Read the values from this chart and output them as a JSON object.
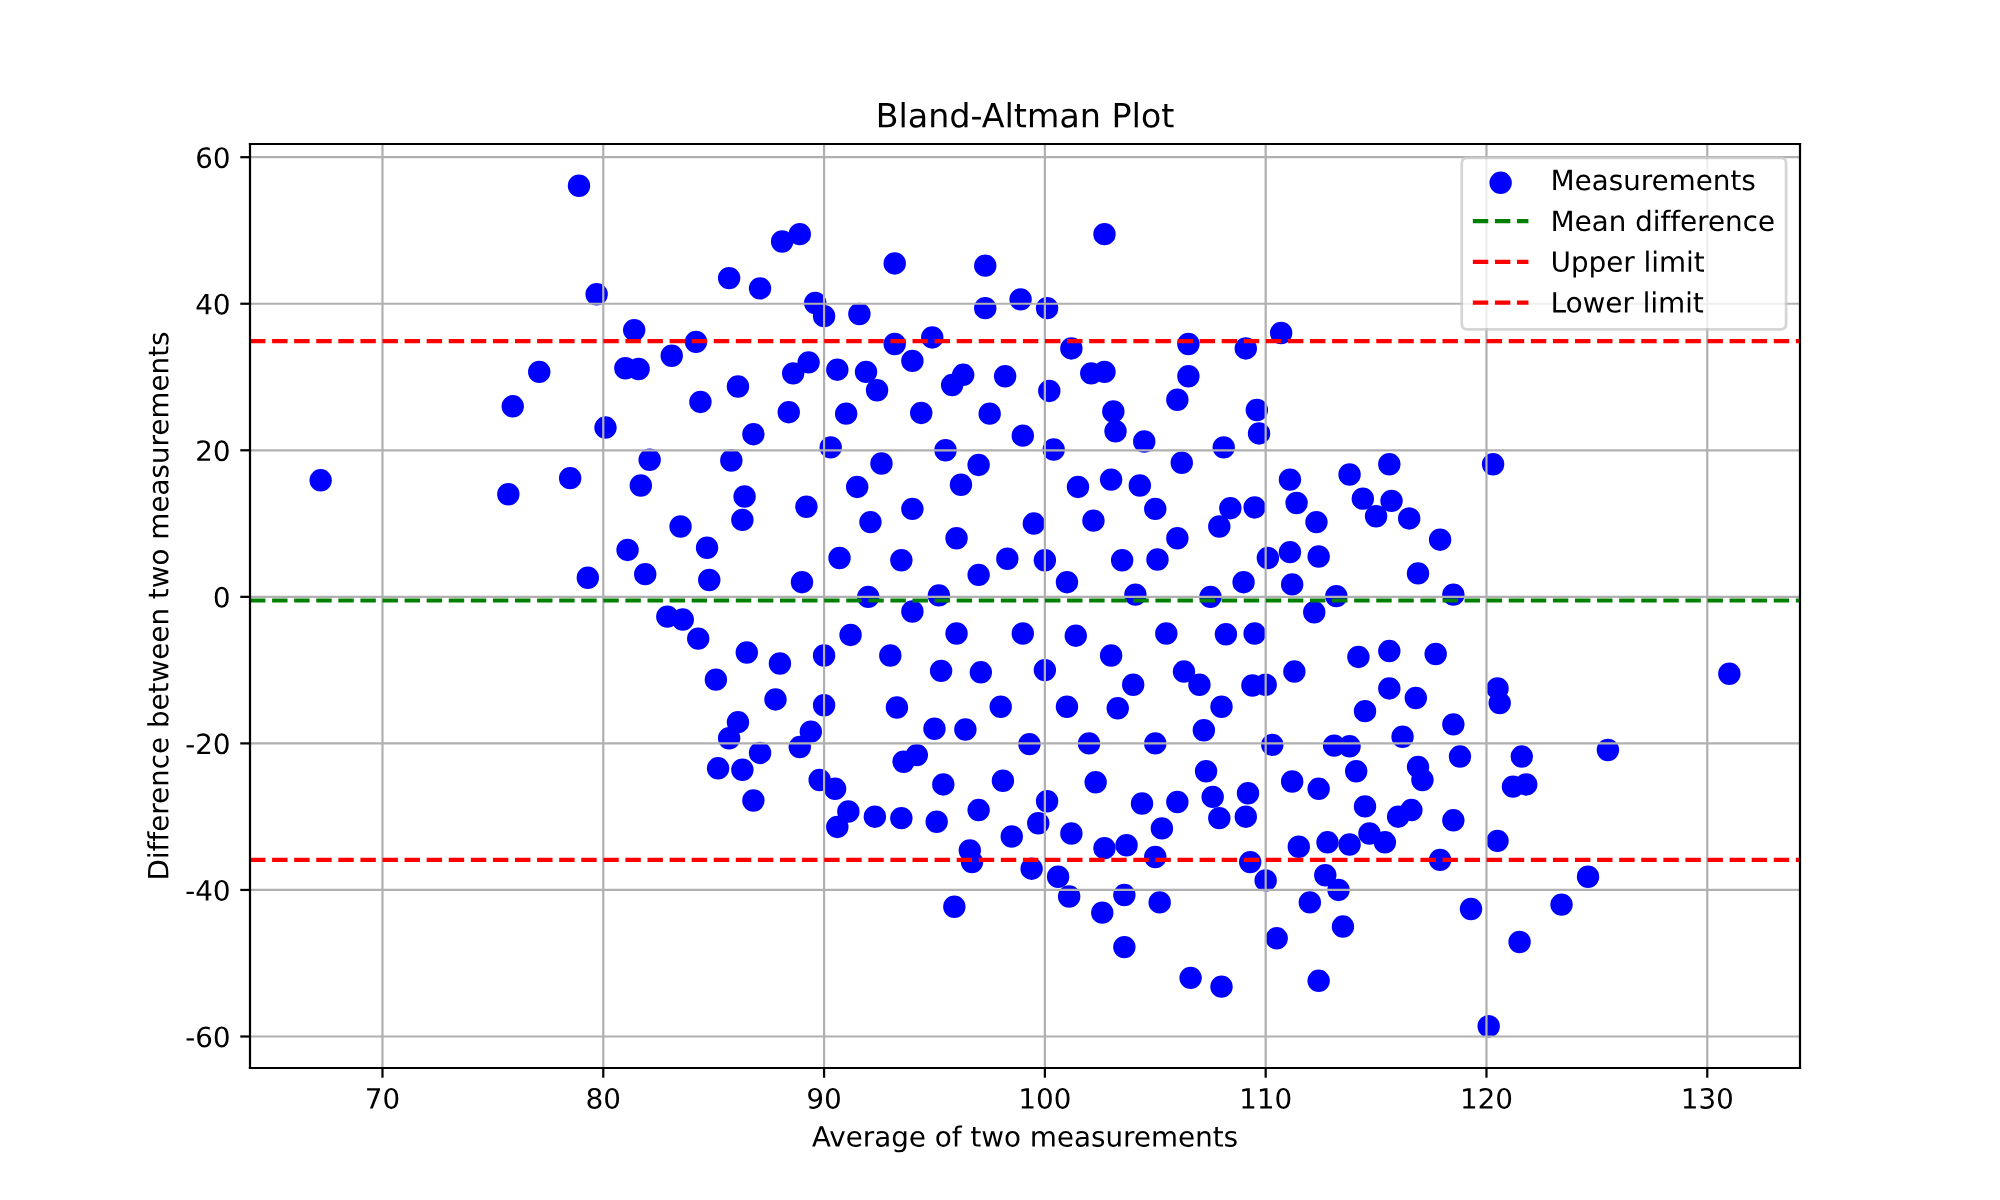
{
  "chart_data": {
    "type": "scatter",
    "title": "Bland-Altman Plot",
    "xlabel": "Average of two measurements",
    "ylabel": "Difference between two measurements",
    "series": [
      {
        "name": "Measurements",
        "color": "#0000ff",
        "x": [
          78.9,
          79.7,
          85.7,
          87.1,
          88.1,
          81.4,
          84.2,
          77.1,
          75.9,
          80.1,
          67.2,
          75.7,
          78.5,
          79.3,
          81.1,
          81.9,
          81.6,
          81.0,
          83.1,
          84.4,
          86.1,
          82.1,
          81.7,
          83.5,
          84.7,
          84.8,
          85.8,
          86.8,
          86.4,
          86.3,
          82.9,
          83.6,
          84.3,
          85.1,
          86.5,
          86.1,
          85.7,
          85.2,
          86.3,
          87.1,
          86.8,
          88.0,
          88.9,
          93.2,
          97.3,
          102.7,
          89.6,
          90.0,
          91.6,
          97.3,
          98.9,
          100.1,
          93.2,
          94.9,
          101.2,
          106.5,
          109.1,
          110.7,
          106.5,
          102.7,
          102.1,
          106.0,
          109.6,
          109.7,
          108.1,
          104.5,
          103.2,
          111.1,
          111.4,
          109.5,
          107.9,
          111.1,
          111.2,
          98.2,
          95.8,
          115.6,
          120.3,
          113.8,
          114.4,
          115.7,
          115.0,
          116.5,
          117.9,
          116.9,
          118.5,
          112.4,
          131.0,
          117.7,
          120.5,
          120.6,
          118.5,
          118.8,
          121.6,
          125.5,
          121.2,
          121.8,
          118.5,
          120.5,
          117.9,
          124.6,
          123.4,
          119.3,
          121.5,
          113.5,
          112.4,
          120.1,
          113.3,
          112.0,
          112.7,
          116.6,
          116.0,
          115.4,
          114.7,
          113.8,
          112.8,
          116.9,
          117.1,
          114.5,
          115.6,
          115.6,
          116.8,
          114.5,
          116.2,
          113.8,
          114.1,
          112.4,
          95.9,
          103.6,
          106.6,
          108.0,
          110.5,
          110.0,
          109.3,
          111.5,
          101.1,
          102.6,
          103.6,
          105.2,
          100.6,
          99.4,
          96.7,
          96.6,
          101.2,
          102.7,
          103.7,
          105.0,
          105.3,
          99.7,
          95.1,
          93.5,
          92.3,
          90.6,
          91.1,
          89.8,
          90.5,
          89.4,
          90.0,
          93.6,
          94.2,
          95.4,
          97.0,
          98.5,
          106.0,
          107.9,
          109.1,
          107.6,
          109.2,
          107.3,
          90.3,
          92.1,
          94.4,
          96.2,
          98.3,
          100.4,
          102.2,
          104.1,
          106.3,
          108.2,
          110.1,
          91.2,
          93.3,
          95.2,
          97.1,
          99.3,
          101.4,
          103.3,
          105.1,
          107.2,
          109.4,
          92.4,
          96.3,
          100.2,
          104.3,
          106.2,
          108.4,
          110.3,
          98.1,
          102.3,
          104.4,
          100.1,
          96.4,
          92.6,
          90.7,
          89.2,
          88.4,
          95.3,
          103.1,
          111.3,
          112.2,
          113.2,
          114.2,
          112.3,
          113.1,
          111.2,
          88.6,
          89.3,
          90.6,
          91.9,
          94.0,
          87.8,
          88.9,
          91.5,
          93.5,
          95.5,
          97.5,
          99.5,
          101.5,
          103.5,
          105.5,
          107.5,
          109.5,
          93.0,
          95.0,
          97.0,
          99.0,
          101.0,
          103.0,
          105.0,
          107.0,
          109.0,
          97.0,
          99.0,
          101.0,
          103.0,
          105.0,
          94.0,
          92.0,
          90.0,
          89.0,
          91.0,
          96.0,
          98.0,
          100.0,
          102.0,
          104.0,
          106.0,
          108.0,
          110.0,
          100.0,
          96.0,
          94.0
        ],
        "values": [
          56.1,
          41.3,
          43.5,
          42.1,
          48.5,
          36.4,
          34.8,
          30.7,
          26.0,
          23.1,
          15.9,
          14.0,
          16.2,
          2.6,
          6.4,
          3.1,
          31.1,
          31.2,
          32.9,
          26.6,
          28.7,
          18.7,
          15.2,
          9.6,
          6.7,
          2.3,
          18.6,
          22.2,
          13.7,
          10.5,
          -2.7,
          -3.1,
          -5.7,
          -11.3,
          -7.6,
          -17.1,
          -19.3,
          -23.4,
          -23.6,
          -21.3,
          -27.8,
          -9.1,
          49.5,
          45.5,
          45.2,
          49.5,
          40.1,
          38.3,
          38.6,
          39.4,
          40.6,
          39.4,
          34.5,
          35.4,
          33.9,
          34.5,
          33.9,
          36.0,
          30.1,
          30.7,
          30.5,
          26.9,
          25.5,
          22.3,
          20.4,
          21.2,
          22.6,
          16.0,
          12.8,
          12.2,
          9.6,
          6.1,
          1.7,
          30.1,
          28.9,
          18.1,
          18.1,
          16.7,
          13.4,
          13.1,
          11.0,
          10.7,
          7.8,
          3.2,
          0.3,
          5.5,
          -10.5,
          -7.8,
          -12.5,
          -14.5,
          -17.4,
          -21.8,
          -21.8,
          -20.9,
          -25.9,
          -25.6,
          -30.5,
          -33.3,
          -35.9,
          -38.2,
          -42.0,
          -42.6,
          -47.1,
          -45.0,
          -52.4,
          -58.6,
          -40.0,
          -41.7,
          -38.0,
          -29.1,
          -30.0,
          -33.5,
          -32.3,
          -33.8,
          -33.5,
          -23.2,
          -25.0,
          -28.6,
          -7.4,
          -12.5,
          -13.8,
          -15.6,
          -19.1,
          -20.4,
          -23.8,
          -26.2,
          -42.3,
          -47.8,
          -52.0,
          -53.2,
          -46.6,
          -38.7,
          -36.2,
          -34.1,
          -40.9,
          -43.1,
          -40.7,
          -41.7,
          -38.2,
          -37.1,
          -36.2,
          -34.6,
          -32.3,
          -34.3,
          -33.9,
          -35.5,
          -31.6,
          -30.9,
          -30.7,
          -30.2,
          -30.0,
          -31.4,
          -29.3,
          -25.0,
          -26.2,
          -18.4,
          -14.8,
          -22.5,
          -21.6,
          -25.6,
          -29.1,
          -32.7,
          -28.0,
          -30.2,
          -30.0,
          -27.3,
          -26.8,
          -23.8,
          20.4,
          10.2,
          25.1,
          15.3,
          5.2,
          20.1,
          10.4,
          0.3,
          -10.2,
          -5.1,
          5.3,
          -5.2,
          -15.1,
          0.2,
          -10.3,
          -20.1,
          -5.3,
          -15.2,
          5.1,
          -18.2,
          -12.1,
          28.2,
          30.3,
          28.1,
          15.2,
          18.3,
          12.1,
          -20.2,
          -25.1,
          -25.3,
          -28.2,
          -27.9,
          -18.1,
          18.2,
          5.3,
          12.3,
          25.2,
          -10.1,
          25.3,
          -10.2,
          -2.1,
          0.1,
          -8.2,
          10.2,
          -20.3,
          -25.2,
          30.5,
          32.0,
          31.0,
          30.7,
          32.2,
          -14.0,
          -20.5,
          15.0,
          5.0,
          20.0,
          25.0,
          10.0,
          15.0,
          5.0,
          -5.0,
          0.0,
          -5.0,
          -8.0,
          -18.0,
          3.0,
          -5.0,
          -15.0,
          -8.0,
          -20.0,
          -12.0,
          2.0,
          18.0,
          22.0,
          2.0,
          16.0,
          12.0,
          12.0,
          0.0,
          -8.0,
          2.0,
          25.0,
          8.0,
          -15.0,
          -10.0,
          -20.0,
          -12.0,
          8.0,
          -15.0,
          -12.0,
          5.0,
          -5.0,
          -2.0
        ]
      }
    ],
    "xlim": [
      64.0,
      134.2
    ],
    "ylim": [
      -64.3,
      61.8
    ],
    "xticks": [
      70,
      80,
      90,
      100,
      110,
      120,
      130
    ],
    "yticks": [
      -60,
      -40,
      -20,
      0,
      20,
      40,
      60
    ],
    "ref_lines": [
      {
        "axis": "y",
        "value": -0.5,
        "label": "Mean difference",
        "color": "#008000",
        "line_style": "dashed"
      },
      {
        "axis": "y",
        "value": 34.9,
        "label": "Upper limit",
        "color": "#ff0000",
        "line_style": "dashed"
      },
      {
        "axis": "y",
        "value": -35.9,
        "label": "Lower limit",
        "color": "#ff0000",
        "line_style": "dashed"
      }
    ],
    "grid": true,
    "legend": "top right",
    "marker": "circle"
  }
}
